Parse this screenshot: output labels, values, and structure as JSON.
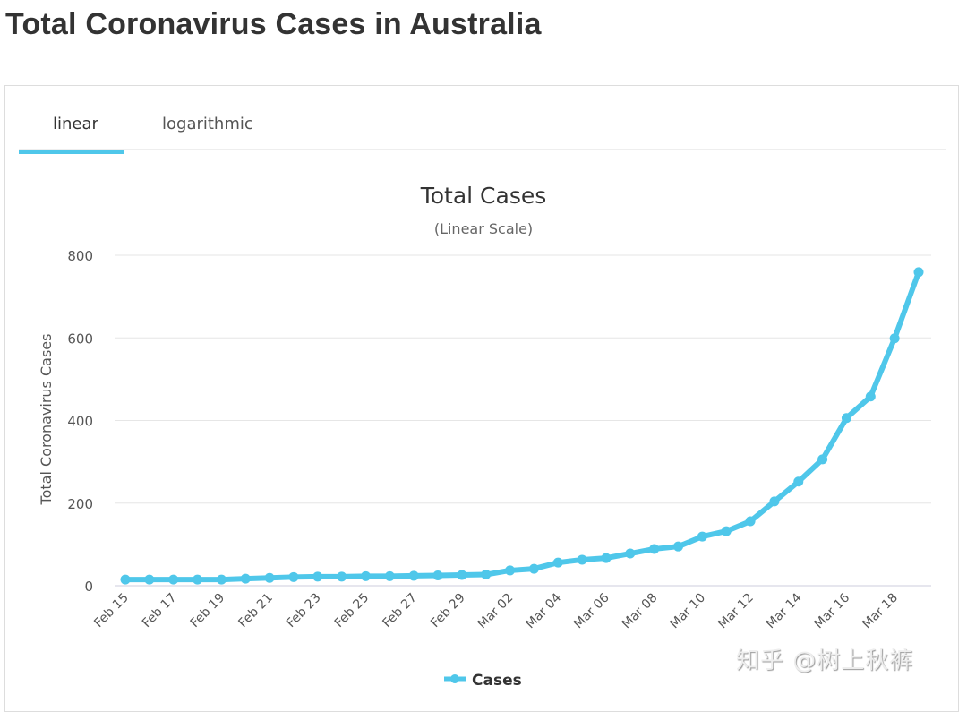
{
  "page_title": "Total Coronavirus Cases in Australia",
  "tabs": [
    {
      "label": "linear",
      "active": true
    },
    {
      "label": "logarithmic",
      "active": false
    }
  ],
  "watermark": "知乎 @树上秋裤",
  "colors": {
    "series": "#4fc7ea",
    "grid": "#e6e6e6"
  },
  "chart_data": {
    "type": "line",
    "title": "Total Cases",
    "subtitle": "(Linear Scale)",
    "xlabel": "",
    "ylabel": "Total Coronavirus Cases",
    "ylim": [
      0,
      800
    ],
    "yticks": [
      0,
      200,
      400,
      600,
      800
    ],
    "grid": true,
    "legend": "bottom-center",
    "x": [
      "Feb 15",
      "Feb 16",
      "Feb 17",
      "Feb 18",
      "Feb 19",
      "Feb 20",
      "Feb 21",
      "Feb 22",
      "Feb 23",
      "Feb 24",
      "Feb 25",
      "Feb 26",
      "Feb 27",
      "Feb 28",
      "Feb 29",
      "Mar 01",
      "Mar 02",
      "Mar 03",
      "Mar 04",
      "Mar 05",
      "Mar 06",
      "Mar 07",
      "Mar 08",
      "Mar 09",
      "Mar 10",
      "Mar 11",
      "Mar 12",
      "Mar 13",
      "Mar 14",
      "Mar 15",
      "Mar 16",
      "Mar 17",
      "Mar 18",
      "Mar 19"
    ],
    "xtick_labels": [
      "Feb 15",
      "Feb 17",
      "Feb 19",
      "Feb 21",
      "Feb 23",
      "Feb 25",
      "Feb 27",
      "Feb 29",
      "Mar 02",
      "Mar 04",
      "Mar 06",
      "Mar 08",
      "Mar 10",
      "Mar 12",
      "Mar 14",
      "Mar 16",
      "Mar 18"
    ],
    "series": [
      {
        "name": "Cases",
        "values": [
          15,
          15,
          15,
          15,
          15,
          17,
          19,
          21,
          22,
          22,
          23,
          23,
          24,
          25,
          26,
          27,
          37,
          41,
          56,
          63,
          67,
          78,
          89,
          95,
          119,
          132,
          156,
          204,
          252,
          306,
          406,
          458,
          599,
          759
        ]
      }
    ]
  }
}
